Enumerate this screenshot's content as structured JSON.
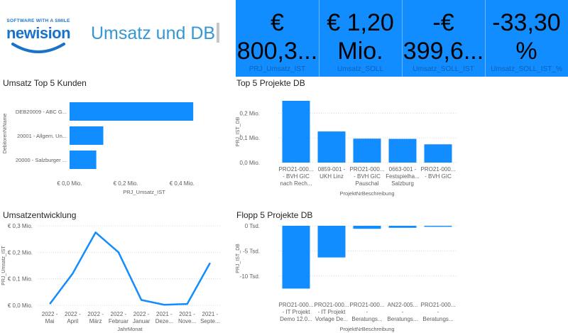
{
  "header": {
    "logo_tagline": "SOFTWARE WITH A SMILE",
    "logo_word": "newision",
    "title": "Umsatz und DB"
  },
  "kpis": [
    {
      "value": "€\n800,3...",
      "label": "PRJ_Umsatz_IST"
    },
    {
      "value": "€ 1,20\nMio.",
      "label": "Umsatz_SOLL"
    },
    {
      "value": "-€\n399,6...",
      "label": "Umsatz_SOLL_IST"
    },
    {
      "value": "-33,30\n%",
      "label": "Umsatz_SOLL_IST_%"
    }
  ],
  "colors": {
    "bar": "#118dff",
    "kpi_bg": "#118dff",
    "title": "#3597d3",
    "axis_text": "#605e5c"
  },
  "chart_data": [
    {
      "id": "top5kunden",
      "type": "bar",
      "orientation": "horizontal",
      "title": "Umsatz Top 5 Kunden",
      "categories": [
        "DEB20009 - ABC G...",
        "20001 - Allgem. Un...",
        "20000 - Salzburger ..."
      ],
      "values": [
        0.44,
        0.12,
        0.095
      ],
      "xlabel": "PRJ_Umsatz_IST",
      "ylabel": "DebitorenNrName",
      "xlim": [
        0,
        0.48
      ],
      "xticks": [
        0,
        0.2,
        0.4
      ],
      "xtick_labels": [
        "€ 0,0 Mio.",
        "€ 0,2 Mio.",
        "€ 0,4 Mio."
      ],
      "grid": false
    },
    {
      "id": "top5projekte",
      "type": "bar",
      "title": "Top 5 Projekte DB",
      "categories": [
        [
          "PRO21-000...",
          "- BVH GIC",
          "nach Rech..."
        ],
        [
          "0859-001 -",
          "UKH Linz"
        ],
        [
          "PRO21-000...",
          "- BVH GIC",
          "Pauschal"
        ],
        [
          "0663-001 -",
          "Festspielha...",
          "Salzburg"
        ],
        [
          "PRO21-000...",
          "- BVH GIC"
        ]
      ],
      "values": [
        0.25,
        0.126,
        0.097,
        0.096,
        0.074
      ],
      "xlabel": "ProjektNrBeschreibung",
      "ylabel": "PRJ_IST_DB",
      "ylim": [
        0,
        0.25
      ],
      "yticks": [
        0,
        0.1,
        0.2
      ],
      "ytick_labels": [
        "0,0 Mio.",
        "0,1 Mio.",
        "0,2 Mio."
      ],
      "grid": true
    },
    {
      "id": "umsatzentwicklung",
      "type": "line",
      "title": "Umsatzentwicklung",
      "categories": [
        [
          "2022 -",
          "Mai"
        ],
        [
          "2022 -",
          "April"
        ],
        [
          "2022 -",
          "März"
        ],
        [
          "2022 -",
          "Februar"
        ],
        [
          "2022 -",
          "Januar"
        ],
        [
          "2021 -",
          "Deze..."
        ],
        [
          "2021 -",
          "Nove..."
        ],
        [
          "2021 -",
          "Septe..."
        ]
      ],
      "values": [
        0.005,
        0.12,
        0.275,
        0.2,
        0.02,
        0.002,
        0.005,
        0.16
      ],
      "xlabel": "JahrMonat",
      "ylabel": "PRJ_Umsatz_IST",
      "ylim": [
        0,
        0.3
      ],
      "yticks": [
        0,
        0.1,
        0.2,
        0.3
      ],
      "ytick_labels": [
        "€ 0,0 Mio.",
        "€ 0,1 Mio.",
        "€ 0,2 Mio.",
        "€ 0,3 Mio."
      ],
      "grid": true
    },
    {
      "id": "flopp5projekte",
      "type": "bar",
      "title": "Flopp 5 Projekte DB",
      "categories": [
        [
          "PRO21-000...",
          "- IT Projekt",
          "Demo 12.0..."
        ],
        [
          "PRO21-000...",
          "- IT Projekt",
          "Vorlage De..."
        ],
        [
          "PRO21-000...",
          "-",
          "Beratungs..."
        ],
        [
          "AN22-005...",
          "-",
          "Beratungs..."
        ],
        [
          "PRO21-000...",
          "-",
          "Beratungs..."
        ]
      ],
      "values": [
        -12.5,
        -6.3,
        -0.6,
        -0.4,
        -0.2
      ],
      "xlabel": "ProjektNrBeschreibung",
      "ylabel": "PRJ_IST_DB",
      "ylim": [
        -13,
        0
      ],
      "yticks": [
        0,
        -5,
        -10
      ],
      "ytick_labels": [
        "0 Tsd.",
        "-5 Tsd.",
        "-10 Tsd."
      ],
      "grid": true
    }
  ]
}
